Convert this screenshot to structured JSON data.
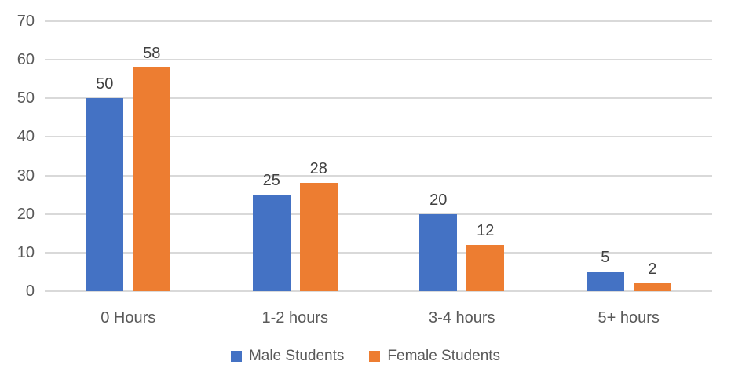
{
  "chart_data": {
    "type": "bar",
    "title": "",
    "xlabel": "",
    "ylabel": "",
    "categories": [
      "0 Hours",
      "1-2 hours",
      "3-4 hours",
      "5+ hours"
    ],
    "series": [
      {
        "name": "Male Students",
        "color": "#4472C4",
        "values": [
          50,
          25,
          20,
          5
        ]
      },
      {
        "name": "Female Students",
        "color": "#ED7D31",
        "values": [
          58,
          28,
          12,
          2
        ]
      }
    ],
    "ylim": [
      0,
      70
    ],
    "ytick_step": 10,
    "y_ticks": [
      70,
      60,
      50,
      40,
      30,
      20,
      10,
      0
    ],
    "grid": true,
    "data_labels": true,
    "legend_position": "bottom"
  },
  "colors": {
    "male_series": "#4472C4",
    "female_series": "#ED7D31",
    "gridline": "#D9D9D9",
    "axis_text": "#595959",
    "data_label_text": "#404040",
    "background": "#FFFFFF"
  },
  "legend": {
    "items": [
      {
        "label": "Male Students",
        "color": "#4472C4"
      },
      {
        "label": "Female Students",
        "color": "#ED7D31"
      }
    ]
  }
}
